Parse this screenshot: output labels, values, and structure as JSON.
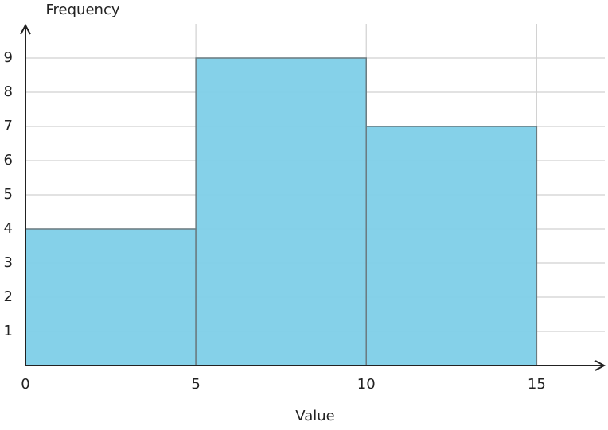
{
  "chart_data": {
    "type": "histogram",
    "x_label": "Value",
    "y_label": "Frequency",
    "bins": [
      0,
      5,
      10,
      15
    ],
    "values": [
      4,
      9,
      7
    ],
    "color": "#7ecfe8",
    "xlim": [
      0,
      17
    ],
    "ylim": [
      0,
      10
    ],
    "xticks": [
      0,
      5,
      10,
      15
    ],
    "yticks": [
      1,
      2,
      3,
      4,
      5,
      6,
      7,
      8,
      9
    ],
    "grid": true
  }
}
